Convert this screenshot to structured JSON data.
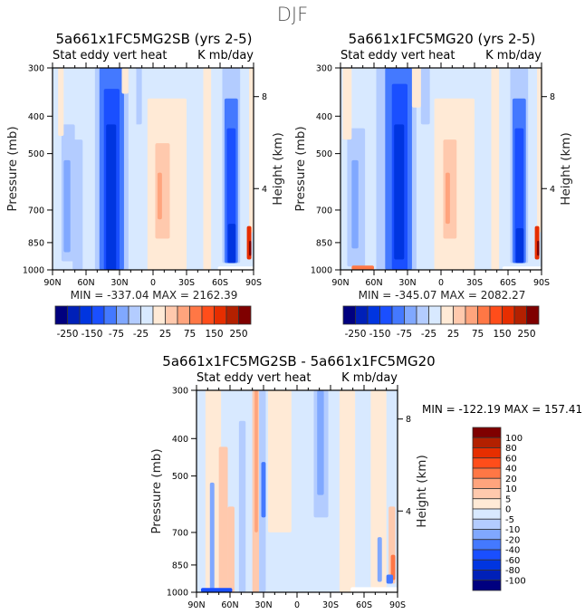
{
  "suptitle": "DJF",
  "chart_data": [
    {
      "type": "heatmap",
      "subtype": "filled-contour latitude-pressure cross-section",
      "title": "5a661x1FC5MG2SB (yrs 2-5)",
      "left_subtitle": "Stat eddy vert heat",
      "right_subtitle": "K mb/day",
      "xlabel": "",
      "ylabel": "Pressure (mb)",
      "ylabel_right": "Height (km)",
      "x_ticks": [
        "90N",
        "60N",
        "30N",
        "0",
        "30S",
        "60S",
        "90S"
      ],
      "x_range": [
        90,
        -90
      ],
      "y_ticks": [
        300,
        400,
        500,
        700,
        850,
        1000
      ],
      "y_range": [
        1000,
        300
      ],
      "y_scale": "log",
      "right_ticks": [
        {
          "label": "8",
          "pressure": 356
        },
        {
          "label": "4",
          "pressure": 616
        }
      ],
      "stats": "MIN = -337.04   MAX = 2162.39",
      "colorbar": {
        "orientation": "horizontal",
        "labels": [
          "-250",
          "-150",
          "-75",
          "-25",
          "25",
          "75",
          "150",
          "250"
        ],
        "levels": [
          -250,
          -200,
          -150,
          -100,
          -75,
          -50,
          -25,
          0,
          25,
          50,
          75,
          100,
          150,
          200,
          250
        ],
        "colors": [
          "#00007f",
          "#0020b8",
          "#0035e0",
          "#1a4fff",
          "#4479ff",
          "#80a8ff",
          "#b3ccff",
          "#d8e9ff",
          "#ffead6",
          "#ffc9ad",
          "#ffa47d",
          "#ff7745",
          "#ff4d1a",
          "#e62e00",
          "#b32000",
          "#7f0000"
        ]
      },
      "features": [
        {
          "lat": [
            90,
            -90
          ],
          "p": [
            300,
            1000
          ],
          "level": -1
        },
        {
          "lat": [
            52,
            22
          ],
          "p": [
            300,
            1000
          ],
          "level": -2
        },
        {
          "lat": [
            48,
            26
          ],
          "p": [
            300,
            1000
          ],
          "level": -4
        },
        {
          "lat": [
            44,
            30
          ],
          "p": [
            340,
            1000
          ],
          "level": -5
        },
        {
          "lat": [
            42,
            33
          ],
          "p": [
            420,
            1000
          ],
          "level": -6
        },
        {
          "lat": [
            82,
            70
          ],
          "p": [
            420,
            950
          ],
          "level": -2
        },
        {
          "lat": [
            80,
            74
          ],
          "p": [
            520,
            900
          ],
          "level": -3
        },
        {
          "lat": [
            72,
            63
          ],
          "p": [
            460,
            1000
          ],
          "level": -2
        },
        {
          "lat": [
            18,
            10
          ],
          "p": [
            300,
            420
          ],
          "level": -2
        },
        {
          "lat": [
            22,
            15
          ],
          "p": [
            300,
            520
          ],
          "level": -1
        },
        {
          "lat": [
            85,
            80
          ],
          "p": [
            300,
            450
          ],
          "level": 1
        },
        {
          "lat": [
            28,
            22
          ],
          "p": [
            300,
            350
          ],
          "level": 1
        },
        {
          "lat": [
            5,
            -30
          ],
          "p": [
            360,
            1000
          ],
          "level": 1
        },
        {
          "lat": [
            -2,
            -15
          ],
          "p": [
            470,
            830
          ],
          "level": 2
        },
        {
          "lat": [
            -4,
            -8
          ],
          "p": [
            560,
            740
          ],
          "level": 3
        },
        {
          "lat": [
            -45,
            -52
          ],
          "p": [
            300,
            1000
          ],
          "level": 1
        },
        {
          "lat": [
            -62,
            -78
          ],
          "p": [
            300,
            960
          ],
          "level": -2
        },
        {
          "lat": [
            -64,
            -76
          ],
          "p": [
            360,
            960
          ],
          "level": -4
        },
        {
          "lat": [
            -66,
            -74
          ],
          "p": [
            430,
            960
          ],
          "level": -5
        },
        {
          "lat": [
            -67,
            -74
          ],
          "p": [
            760,
            960
          ],
          "level": -6
        },
        {
          "lat": [
            -86,
            -90
          ],
          "p": [
            300,
            800
          ],
          "level": 1
        },
        {
          "lat": [
            -84,
            -88
          ],
          "p": [
            770,
            940
          ],
          "level": 6
        },
        {
          "lat": [
            -86,
            -88
          ],
          "p": [
            840,
            920
          ],
          "level": 8
        },
        {
          "lat": [
            -58,
            -90
          ],
          "p": [
            980,
            1000
          ],
          "level": 0
        }
      ]
    },
    {
      "type": "heatmap",
      "subtype": "filled-contour latitude-pressure cross-section",
      "title": "5a661x1FC5MG20 (yrs 2-5)",
      "left_subtitle": "Stat eddy vert heat",
      "right_subtitle": "K mb/day",
      "xlabel": "",
      "ylabel": "Pressure (mb)",
      "ylabel_right": "Height (km)",
      "x_ticks": [
        "90N",
        "60N",
        "30N",
        "0",
        "30S",
        "60S",
        "90S"
      ],
      "x_range": [
        90,
        -90
      ],
      "y_ticks": [
        300,
        400,
        500,
        700,
        850,
        1000
      ],
      "y_range": [
        1000,
        300
      ],
      "y_scale": "log",
      "right_ticks": [
        {
          "label": "8",
          "pressure": 356
        },
        {
          "label": "4",
          "pressure": 616
        }
      ],
      "stats": "MIN = -345.07   MAX = 2082.27",
      "colorbar": {
        "orientation": "horizontal",
        "labels": [
          "-250",
          "-150",
          "-75",
          "-25",
          "25",
          "75",
          "150",
          "250"
        ],
        "levels": [
          -250,
          -200,
          -150,
          -100,
          -75,
          -50,
          -25,
          0,
          25,
          50,
          75,
          100,
          150,
          200,
          250
        ],
        "colors": [
          "#00007f",
          "#0020b8",
          "#0035e0",
          "#1a4fff",
          "#4479ff",
          "#80a8ff",
          "#b3ccff",
          "#d8e9ff",
          "#ffead6",
          "#ffc9ad",
          "#ffa47d",
          "#ff7745",
          "#ff4d1a",
          "#e62e00",
          "#b32000",
          "#7f0000"
        ]
      },
      "features": [
        {
          "lat": [
            90,
            -90
          ],
          "p": [
            300,
            1000
          ],
          "level": -1
        },
        {
          "lat": [
            58,
            22
          ],
          "p": [
            300,
            1000
          ],
          "level": -2
        },
        {
          "lat": [
            50,
            26
          ],
          "p": [
            300,
            1000
          ],
          "level": -4
        },
        {
          "lat": [
            44,
            30
          ],
          "p": [
            330,
            1000
          ],
          "level": -5
        },
        {
          "lat": [
            42,
            33
          ],
          "p": [
            420,
            940
          ],
          "level": -6
        },
        {
          "lat": [
            84,
            68
          ],
          "p": [
            430,
            980
          ],
          "level": -2
        },
        {
          "lat": [
            80,
            74
          ],
          "p": [
            520,
            880
          ],
          "level": -3
        },
        {
          "lat": [
            18,
            10
          ],
          "p": [
            300,
            420
          ],
          "level": -2
        },
        {
          "lat": [
            88,
            80
          ],
          "p": [
            300,
            460
          ],
          "level": 1
        },
        {
          "lat": [
            26,
            18
          ],
          "p": [
            300,
            380
          ],
          "level": 1
        },
        {
          "lat": [
            6,
            -30
          ],
          "p": [
            360,
            1000
          ],
          "level": 1
        },
        {
          "lat": [
            -2,
            -14
          ],
          "p": [
            460,
            830
          ],
          "level": 2
        },
        {
          "lat": [
            -4,
            -8
          ],
          "p": [
            560,
            760
          ],
          "level": 3
        },
        {
          "lat": [
            -45,
            -52
          ],
          "p": [
            300,
            1000
          ],
          "level": 1
        },
        {
          "lat": [
            -62,
            -78
          ],
          "p": [
            300,
            960
          ],
          "level": -2
        },
        {
          "lat": [
            -64,
            -76
          ],
          "p": [
            360,
            960
          ],
          "level": -4
        },
        {
          "lat": [
            -66,
            -74
          ],
          "p": [
            430,
            960
          ],
          "level": -5
        },
        {
          "lat": [
            -67,
            -74
          ],
          "p": [
            780,
            960
          ],
          "level": -6
        },
        {
          "lat": [
            -86,
            -90
          ],
          "p": [
            300,
            800
          ],
          "level": 1
        },
        {
          "lat": [
            -84,
            -88
          ],
          "p": [
            770,
            940
          ],
          "level": 6
        },
        {
          "lat": [
            -86,
            -88
          ],
          "p": [
            840,
            920
          ],
          "level": 8
        },
        {
          "lat": [
            80,
            60
          ],
          "p": [
            975,
            1000
          ],
          "level": 4
        },
        {
          "lat": [
            -55,
            -90
          ],
          "p": [
            980,
            1000
          ],
          "level": 0
        }
      ]
    },
    {
      "type": "heatmap",
      "subtype": "filled-contour latitude-pressure cross-section (difference)",
      "title": "5a661x1FC5MG2SB - 5a661x1FC5MG20",
      "left_subtitle": "Stat eddy vert heat",
      "right_subtitle": "K mb/day",
      "xlabel": "",
      "ylabel": "Pressure (mb)",
      "ylabel_right": "Height (km)",
      "x_ticks": [
        "90N",
        "60N",
        "30N",
        "0",
        "30S",
        "60S",
        "90S"
      ],
      "x_range": [
        90,
        -90
      ],
      "y_ticks": [
        300,
        400,
        500,
        700,
        850,
        1000
      ],
      "y_range": [
        1000,
        300
      ],
      "y_scale": "log",
      "right_ticks": [
        {
          "label": "8",
          "pressure": 356
        },
        {
          "label": "4",
          "pressure": 616
        }
      ],
      "stats": "MIN = -122.19   MAX = 157.41",
      "colorbar": {
        "orientation": "vertical",
        "labels": [
          "100",
          "80",
          "60",
          "40",
          "20",
          "10",
          "5",
          "0",
          "-5",
          "-10",
          "-20",
          "-40",
          "-60",
          "-80",
          "-100"
        ],
        "levels": [
          -100,
          -80,
          -60,
          -40,
          -20,
          -10,
          -5,
          0,
          5,
          10,
          20,
          40,
          60,
          80,
          100
        ],
        "colors": [
          "#00007f",
          "#0020b8",
          "#0035e0",
          "#1a4fff",
          "#4479ff",
          "#80a8ff",
          "#b3ccff",
          "#d8e9ff",
          "#ffead6",
          "#ffc9ad",
          "#ffa47d",
          "#ff7745",
          "#ff4d1a",
          "#e62e00",
          "#b32000",
          "#7f0000"
        ]
      },
      "features": [
        {
          "lat": [
            90,
            -90
          ],
          "p": [
            300,
            1000
          ],
          "level": -1
        },
        {
          "lat": [
            82,
            74
          ],
          "p": [
            300,
            1000
          ],
          "level": 1
        },
        {
          "lat": [
            76,
            68
          ],
          "p": [
            300,
            1000
          ],
          "level": 1
        },
        {
          "lat": [
            70,
            62
          ],
          "p": [
            420,
            1000
          ],
          "level": 2
        },
        {
          "lat": [
            78,
            74
          ],
          "p": [
            520,
            980
          ],
          "level": -3
        },
        {
          "lat": [
            62,
            56
          ],
          "p": [
            600,
            1000
          ],
          "level": 2
        },
        {
          "lat": [
            52,
            46
          ],
          "p": [
            360,
            1000
          ],
          "level": -2
        },
        {
          "lat": [
            40,
            34
          ],
          "p": [
            300,
            1000
          ],
          "level": 2
        },
        {
          "lat": [
            38,
            35
          ],
          "p": [
            300,
            700
          ],
          "level": 3
        },
        {
          "lat": [
            34,
            28
          ],
          "p": [
            300,
            1000
          ],
          "level": -2
        },
        {
          "lat": [
            32,
            28
          ],
          "p": [
            460,
            640
          ],
          "level": -4
        },
        {
          "lat": [
            26,
            5
          ],
          "p": [
            300,
            700
          ],
          "level": 1
        },
        {
          "lat": [
            -15,
            -28
          ],
          "p": [
            300,
            640
          ],
          "level": -2
        },
        {
          "lat": [
            -18,
            -24
          ],
          "p": [
            300,
            560
          ],
          "level": -3
        },
        {
          "lat": [
            -38,
            -52
          ],
          "p": [
            300,
            1000
          ],
          "level": 1
        },
        {
          "lat": [
            -66,
            -80
          ],
          "p": [
            300,
            1000
          ],
          "level": 1
        },
        {
          "lat": [
            -72,
            -76
          ],
          "p": [
            720,
            940
          ],
          "level": -3
        },
        {
          "lat": [
            -82,
            -88
          ],
          "p": [
            600,
            950
          ],
          "level": 2
        },
        {
          "lat": [
            -84,
            -88
          ],
          "p": [
            800,
            930
          ],
          "level": 4
        },
        {
          "lat": [
            -80,
            -86
          ],
          "p": [
            900,
            950
          ],
          "level": -4
        },
        {
          "lat": [
            86,
            58
          ],
          "p": [
            975,
            1000
          ],
          "level": -5
        },
        {
          "lat": [
            -48,
            -90
          ],
          "p": [
            970,
            1000
          ],
          "level": 0
        }
      ]
    }
  ]
}
